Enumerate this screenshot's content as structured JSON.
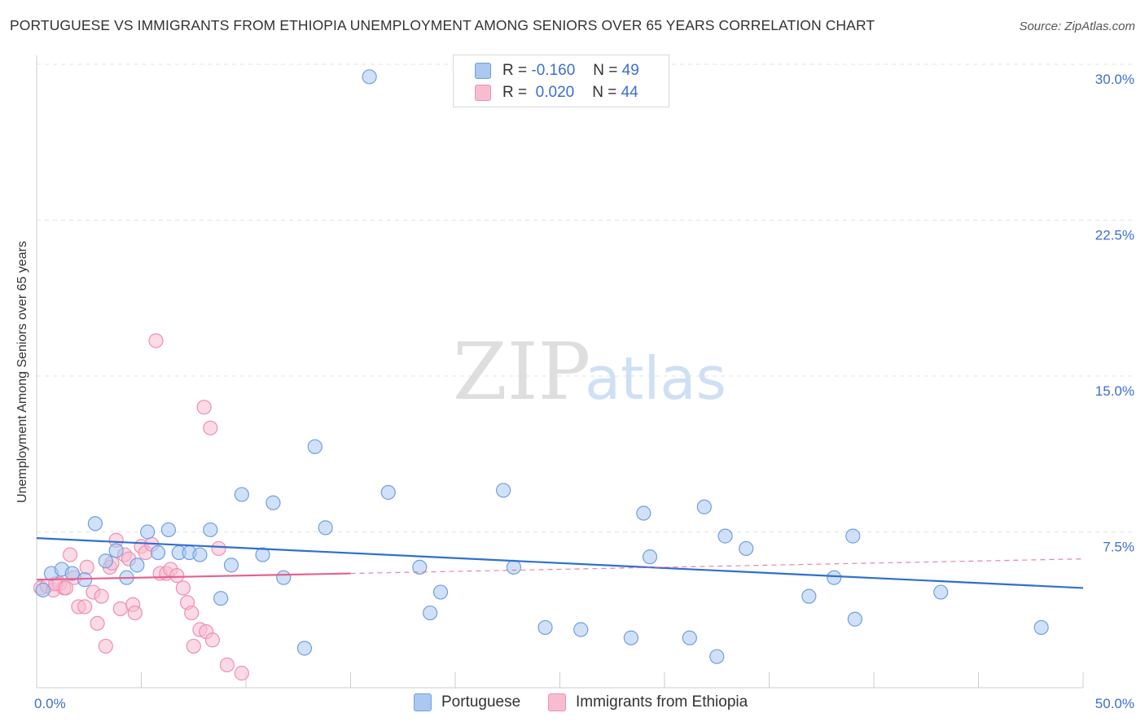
{
  "header": {
    "title": "PORTUGUESE VS IMMIGRANTS FROM ETHIOPIA UNEMPLOYMENT AMONG SENIORS OVER 65 YEARS CORRELATION CHART",
    "source": "Source: ZipAtlas.com"
  },
  "watermark": {
    "zip": "ZIP",
    "atlas": "atlas"
  },
  "legend": {
    "rows": [
      {
        "r_label": "R =",
        "r_value": "-0.160",
        "n_label": "N =",
        "n_value": "49"
      },
      {
        "r_label": "R =",
        "r_value": "0.020",
        "n_label": "N =",
        "n_value": "44"
      }
    ]
  },
  "colors": {
    "portuguese_fill": "#aac8f0",
    "portuguese_stroke": "#6f9fe0",
    "portuguese_line": "#2f6fd0",
    "ethiopia_fill": "#f8bcd0",
    "ethiopia_stroke": "#ee8fb0",
    "ethiopia_line": "#e8608e",
    "axis_tick_label": "#3b6fd0",
    "grid": "#e3e3e3"
  },
  "chart_data": {
    "type": "scatter",
    "title": "PORTUGUESE VS IMMIGRANTS FROM ETHIOPIA UNEMPLOYMENT AMONG SENIORS OVER 65 YEARS CORRELATION CHART",
    "xlabel": "",
    "ylabel": "Unemployment Among Seniors over 65 years",
    "xlim": [
      0,
      50
    ],
    "ylim": [
      0,
      30
    ],
    "x_tick_labels": [
      "0.0%",
      "50.0%"
    ],
    "y_ticks": [
      7.5,
      15.0,
      22.5,
      30.0
    ],
    "y_tick_labels": [
      "7.5%",
      "15.0%",
      "22.5%",
      "30.0%"
    ],
    "grid": true,
    "legend_position": "bottom-center",
    "series": [
      {
        "name": "Portuguese",
        "points": [
          [
            0.3,
            4.7
          ],
          [
            0.7,
            5.5
          ],
          [
            1.2,
            5.7
          ],
          [
            1.7,
            5.5
          ],
          [
            2.3,
            5.2
          ],
          [
            2.8,
            7.9
          ],
          [
            3.3,
            6.1
          ],
          [
            3.8,
            6.6
          ],
          [
            4.3,
            5.3
          ],
          [
            4.8,
            5.9
          ],
          [
            5.3,
            7.5
          ],
          [
            5.8,
            6.5
          ],
          [
            6.3,
            7.6
          ],
          [
            6.8,
            6.5
          ],
          [
            7.3,
            6.5
          ],
          [
            7.8,
            6.4
          ],
          [
            8.3,
            7.6
          ],
          [
            8.8,
            4.3
          ],
          [
            9.3,
            5.9
          ],
          [
            9.8,
            9.3
          ],
          [
            10.8,
            6.4
          ],
          [
            11.3,
            8.9
          ],
          [
            11.8,
            5.3
          ],
          [
            12.8,
            1.9
          ],
          [
            13.3,
            11.6
          ],
          [
            13.8,
            7.7
          ],
          [
            15.9,
            29.4
          ],
          [
            16.8,
            9.4
          ],
          [
            18.3,
            5.8
          ],
          [
            18.8,
            3.6
          ],
          [
            19.3,
            4.6
          ],
          [
            22.3,
            9.5
          ],
          [
            22.8,
            5.8
          ],
          [
            24.3,
            2.9
          ],
          [
            26.0,
            2.8
          ],
          [
            28.4,
            2.4
          ],
          [
            29.0,
            8.4
          ],
          [
            29.3,
            6.3
          ],
          [
            31.2,
            2.4
          ],
          [
            31.9,
            8.7
          ],
          [
            32.5,
            1.5
          ],
          [
            32.9,
            7.3
          ],
          [
            33.9,
            6.7
          ],
          [
            36.9,
            4.4
          ],
          [
            38.1,
            5.3
          ],
          [
            39.1,
            3.3
          ],
          [
            39.0,
            7.3
          ],
          [
            43.2,
            4.6
          ],
          [
            48.0,
            2.9
          ]
        ],
        "trend": {
          "x": [
            0,
            50
          ],
          "y": [
            7.2,
            4.8
          ]
        }
      },
      {
        "name": "Immigrants from Ethiopia",
        "points": [
          [
            0.2,
            4.8
          ],
          [
            0.5,
            4.9
          ],
          [
            0.8,
            4.7
          ],
          [
            1.1,
            5.0
          ],
          [
            1.3,
            4.8
          ],
          [
            1.6,
            6.4
          ],
          [
            1.8,
            5.3
          ],
          [
            2.0,
            3.9
          ],
          [
            2.3,
            3.9
          ],
          [
            2.4,
            5.8
          ],
          [
            2.7,
            4.6
          ],
          [
            2.9,
            3.1
          ],
          [
            3.1,
            4.4
          ],
          [
            3.3,
            2.0
          ],
          [
            3.5,
            5.8
          ],
          [
            3.6,
            6.0
          ],
          [
            3.8,
            7.1
          ],
          [
            4.0,
            3.8
          ],
          [
            4.2,
            6.4
          ],
          [
            4.4,
            6.2
          ],
          [
            4.6,
            4.0
          ],
          [
            4.7,
            3.6
          ],
          [
            5.0,
            6.8
          ],
          [
            5.2,
            6.5
          ],
          [
            5.5,
            6.9
          ],
          [
            5.7,
            16.7
          ],
          [
            5.9,
            5.5
          ],
          [
            6.2,
            5.5
          ],
          [
            6.4,
            5.7
          ],
          [
            6.7,
            5.4
          ],
          [
            7.0,
            4.8
          ],
          [
            7.2,
            4.1
          ],
          [
            7.4,
            3.6
          ],
          [
            7.5,
            2.0
          ],
          [
            7.8,
            2.8
          ],
          [
            8.0,
            13.5
          ],
          [
            8.1,
            2.7
          ],
          [
            8.3,
            12.5
          ],
          [
            8.4,
            2.3
          ],
          [
            8.7,
            6.7
          ],
          [
            9.1,
            1.1
          ],
          [
            9.8,
            0.7
          ],
          [
            0.9,
            5.0
          ],
          [
            1.4,
            4.8
          ]
        ],
        "trend": {
          "x": [
            0,
            50
          ],
          "y": [
            5.2,
            6.2
          ]
        },
        "trend_solid_until_x": 15
      }
    ]
  },
  "bottom_legend": {
    "items": [
      {
        "label": "Portuguese"
      },
      {
        "label": "Immigrants from Ethiopia"
      }
    ]
  }
}
